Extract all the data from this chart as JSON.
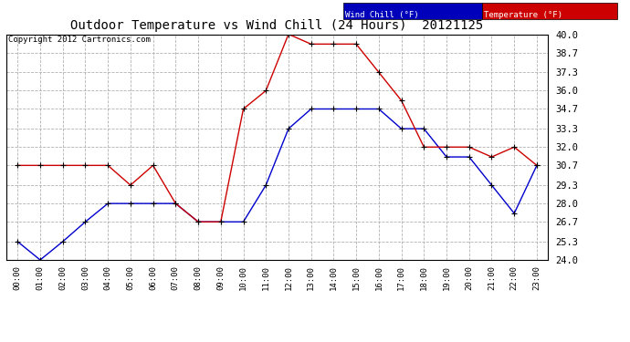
{
  "title": "Outdoor Temperature vs Wind Chill (24 Hours)  20121125",
  "copyright": "Copyright 2012 Cartronics.com",
  "legend_wind_chill": "Wind Chill (°F)",
  "legend_temperature": "Temperature (°F)",
  "hours": [
    0,
    1,
    2,
    3,
    4,
    5,
    6,
    7,
    8,
    9,
    10,
    11,
    12,
    13,
    14,
    15,
    16,
    17,
    18,
    19,
    20,
    21,
    22,
    23
  ],
  "hour_labels": [
    "00:00",
    "01:00",
    "02:00",
    "03:00",
    "04:00",
    "05:00",
    "06:00",
    "07:00",
    "08:00",
    "09:00",
    "10:00",
    "11:00",
    "12:00",
    "13:00",
    "14:00",
    "15:00",
    "16:00",
    "17:00",
    "18:00",
    "19:00",
    "20:00",
    "21:00",
    "22:00",
    "23:00"
  ],
  "temperature": [
    30.7,
    30.7,
    30.7,
    30.7,
    30.7,
    29.3,
    30.7,
    28.0,
    26.7,
    26.7,
    34.7,
    36.0,
    40.0,
    39.3,
    39.3,
    39.3,
    37.3,
    35.3,
    32.0,
    32.0,
    32.0,
    31.3,
    32.0,
    30.7
  ],
  "wind_chill": [
    25.3,
    24.0,
    25.3,
    26.7,
    28.0,
    28.0,
    28.0,
    28.0,
    26.7,
    26.7,
    26.7,
    29.3,
    33.3,
    34.7,
    34.7,
    34.7,
    34.7,
    33.3,
    33.3,
    31.3,
    31.3,
    29.3,
    27.3,
    30.7
  ],
  "temp_color": "#cc0000",
  "wind_color": "#0000cc",
  "marker_color": "black",
  "bg_color": "#ffffff",
  "grid_color": "#aaaaaa",
  "ylim": [
    24.0,
    40.0
  ],
  "yticks": [
    24.0,
    25.3,
    26.7,
    28.0,
    29.3,
    30.7,
    32.0,
    33.3,
    34.7,
    36.0,
    37.3,
    38.7,
    40.0
  ],
  "ytick_labels": [
    "24.0",
    "25.3",
    "26.7",
    "28.0",
    "29.3",
    "30.7",
    "32.0",
    "33.3",
    "34.7",
    "36.0",
    "37.3",
    "38.7",
    "40.0"
  ]
}
